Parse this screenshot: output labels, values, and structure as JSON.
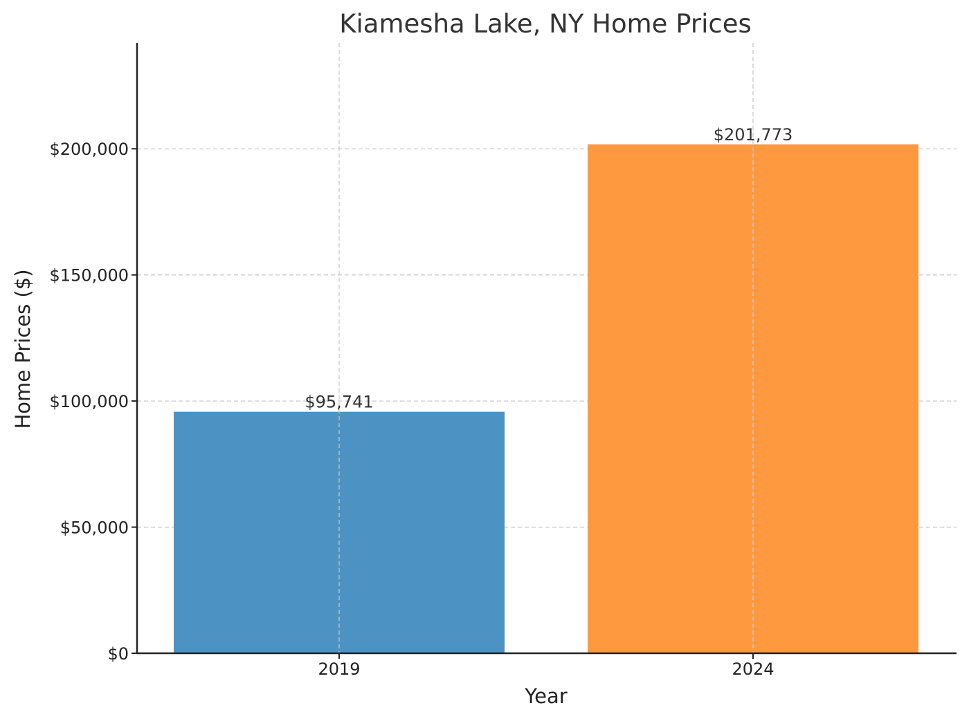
{
  "chart_data": {
    "type": "bar",
    "title": "Kiamesha Lake, NY Home Prices",
    "xlabel": "Year",
    "ylabel": "Home Prices ($)",
    "categories": [
      "2019",
      "2024"
    ],
    "values": [
      95741,
      201773
    ],
    "value_labels": [
      "$95,741",
      "$201,773"
    ],
    "bar_colors": [
      "#4c92c3",
      "#ff993f"
    ],
    "ylim": [
      0,
      242000
    ],
    "yticks": [
      0,
      50000,
      100000,
      150000,
      200000
    ],
    "ytick_labels": [
      "$0",
      "$50,000",
      "$100,000",
      "$150,000",
      "$200,000"
    ],
    "grid": true,
    "legend": false
  }
}
